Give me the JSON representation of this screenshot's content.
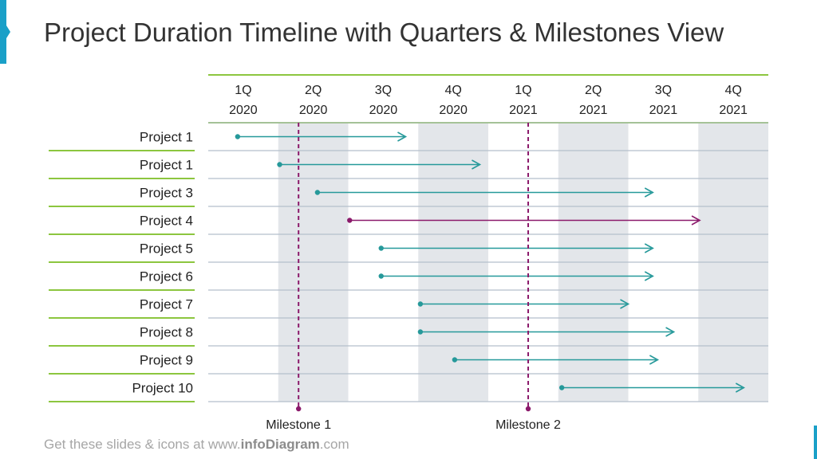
{
  "title": "Project Duration Timeline with Quarters & Milestones View",
  "quarters": [
    {
      "q": "1Q",
      "year": "2020"
    },
    {
      "q": "2Q",
      "year": "2020"
    },
    {
      "q": "3Q",
      "year": "2020"
    },
    {
      "q": "4Q",
      "year": "2020"
    },
    {
      "q": "1Q",
      "year": "2021"
    },
    {
      "q": "2Q",
      "year": "2021"
    },
    {
      "q": "3Q",
      "year": "2021"
    },
    {
      "q": "4Q",
      "year": "2021"
    }
  ],
  "shaded_quarter_indices": [
    1,
    3,
    5,
    7
  ],
  "projects": [
    {
      "label": "Project 1",
      "start": 0.42,
      "end": 2.82,
      "color": "#26999a"
    },
    {
      "label": "Project 1",
      "start": 1.02,
      "end": 3.88,
      "color": "#26999a"
    },
    {
      "label": "Project 3",
      "start": 1.56,
      "end": 6.35,
      "color": "#26999a"
    },
    {
      "label": "Project 4",
      "start": 2.02,
      "end": 7.02,
      "color": "#8b1a6b"
    },
    {
      "label": "Project 5",
      "start": 2.47,
      "end": 6.35,
      "color": "#26999a"
    },
    {
      "label": "Project 6",
      "start": 2.47,
      "end": 6.35,
      "color": "#26999a"
    },
    {
      "label": "Project 7",
      "start": 3.03,
      "end": 6.0,
      "color": "#26999a"
    },
    {
      "label": "Project 8",
      "start": 3.03,
      "end": 6.65,
      "color": "#26999a"
    },
    {
      "label": "Project 9",
      "start": 3.52,
      "end": 6.42,
      "color": "#26999a"
    },
    {
      "label": "Project 10",
      "start": 5.05,
      "end": 7.65,
      "color": "#26999a"
    }
  ],
  "milestones": [
    {
      "label": "Milestone 1",
      "at": 1.29,
      "color": "#8b1a6b"
    },
    {
      "label": "Milestone 2",
      "at": 4.57,
      "color": "#8b1a6b"
    }
  ],
  "colors": {
    "header_line": "#8cc63f",
    "row_line": "#b4bfcc",
    "label_line": "#8cc63f",
    "band": "#e3e6ea",
    "text": "#222222"
  },
  "footer": {
    "prefix": "Get these slides & icons at www.",
    "brand": "infoDiagram",
    "suffix": ".com"
  }
}
